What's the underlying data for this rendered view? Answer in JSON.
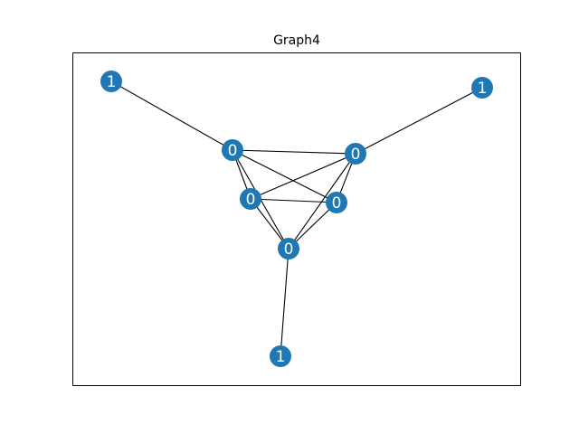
{
  "title": "Graph4",
  "colors": {
    "node_fill": "#1f77b4",
    "edge_stroke": "#000000",
    "frame_stroke": "#000000",
    "label_fill": "#ffffff"
  },
  "graph": {
    "nodes": [
      {
        "id": "n0",
        "label": "1"
      },
      {
        "id": "n1",
        "label": "1"
      },
      {
        "id": "n2",
        "label": "0"
      },
      {
        "id": "n3",
        "label": "0"
      },
      {
        "id": "n4",
        "label": "0"
      },
      {
        "id": "n5",
        "label": "0"
      },
      {
        "id": "n6",
        "label": "0"
      },
      {
        "id": "n7",
        "label": "1"
      }
    ],
    "edges": [
      [
        "n0",
        "n2"
      ],
      [
        "n1",
        "n3"
      ],
      [
        "n7",
        "n6"
      ],
      [
        "n2",
        "n3"
      ],
      [
        "n2",
        "n4"
      ],
      [
        "n2",
        "n5"
      ],
      [
        "n2",
        "n6"
      ],
      [
        "n3",
        "n4"
      ],
      [
        "n3",
        "n5"
      ],
      [
        "n3",
        "n6"
      ],
      [
        "n4",
        "n5"
      ],
      [
        "n4",
        "n6"
      ],
      [
        "n5",
        "n6"
      ]
    ]
  }
}
